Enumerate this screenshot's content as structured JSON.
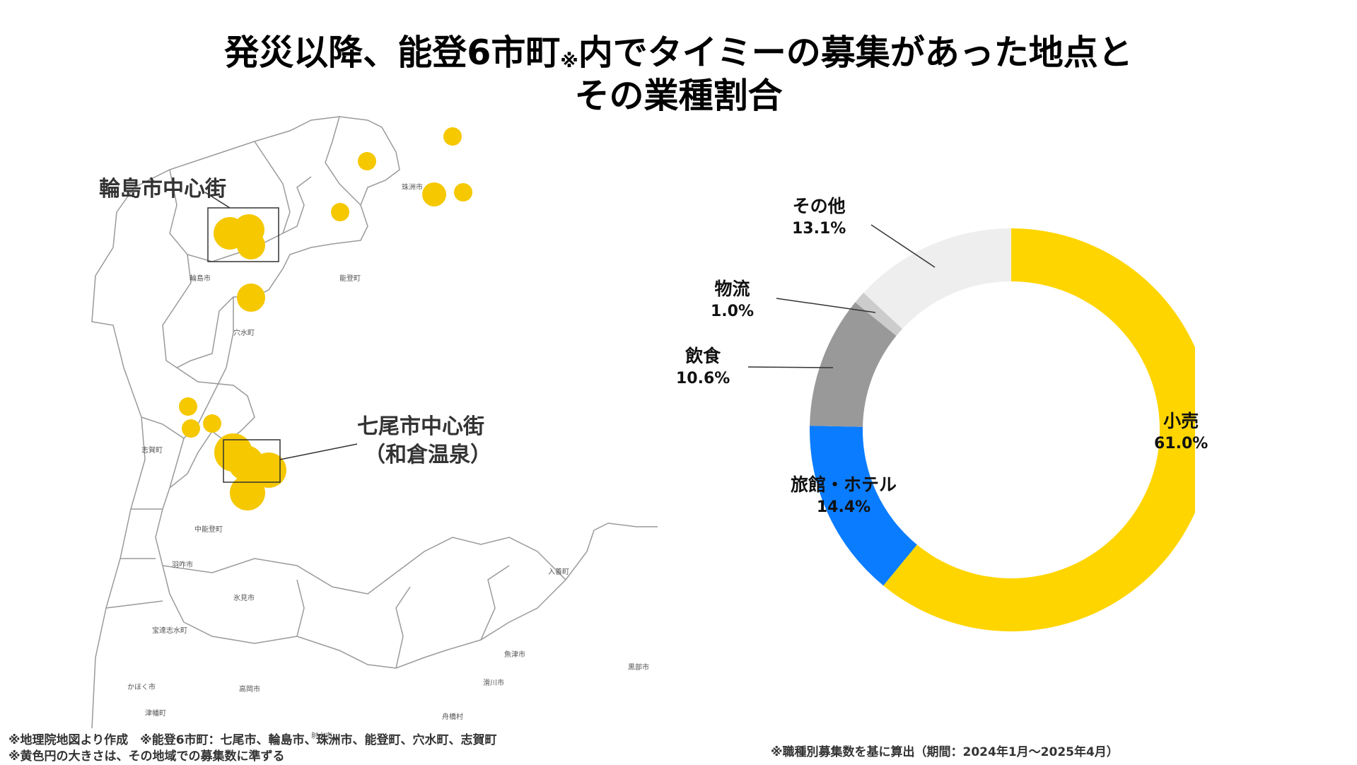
{
  "title": {
    "line1": "発災以降、能登6市町",
    "mark": "※",
    "line1b": "内でタイミーの募集があった地点と",
    "line2": "その業種割合"
  },
  "map": {
    "label_wajima": "輪島市中心街",
    "label_nanao_1": "七尾市中心街",
    "label_nanao_2": "（和倉温泉）",
    "towns": [
      "珠洲市",
      "輪島市",
      "能登町",
      "穴水町",
      "志賀町",
      "中能登町",
      "羽咋市",
      "氷見市",
      "宝達志水町",
      "かほく市",
      "津幡町",
      "高岡市",
      "射水市",
      "魚津市",
      "入善町",
      "滑川市",
      "黒部市",
      "舟橋村"
    ],
    "bubble_color": "#F5C800"
  },
  "chart_data": {
    "type": "pie",
    "variant": "donut",
    "categories": [
      "小売",
      "旅館・ホテル",
      "飲食",
      "物流",
      "その他"
    ],
    "values": [
      61.0,
      14.4,
      10.6,
      1.0,
      13.1
    ],
    "labels_pct": [
      "61.0%",
      "14.4%",
      "10.6%",
      "1.0%",
      "13.1%"
    ],
    "colors": [
      "#FFD500",
      "#0A7CFF",
      "#999999",
      "#CCCCCC",
      "#EEEEEE"
    ],
    "start": "12 o'clock",
    "direction": "clockwise"
  },
  "notes": {
    "left_1": "※地理院地図より作成　※能登6市町：七尾市、輪島市、珠洲市、能登町、穴水町、志賀町",
    "left_2": "※黄色円の大きさは、その地域での募集数に準ずる",
    "right": "※職種別募集数を基に算出（期間：2024年1月〜2025年4月）"
  }
}
